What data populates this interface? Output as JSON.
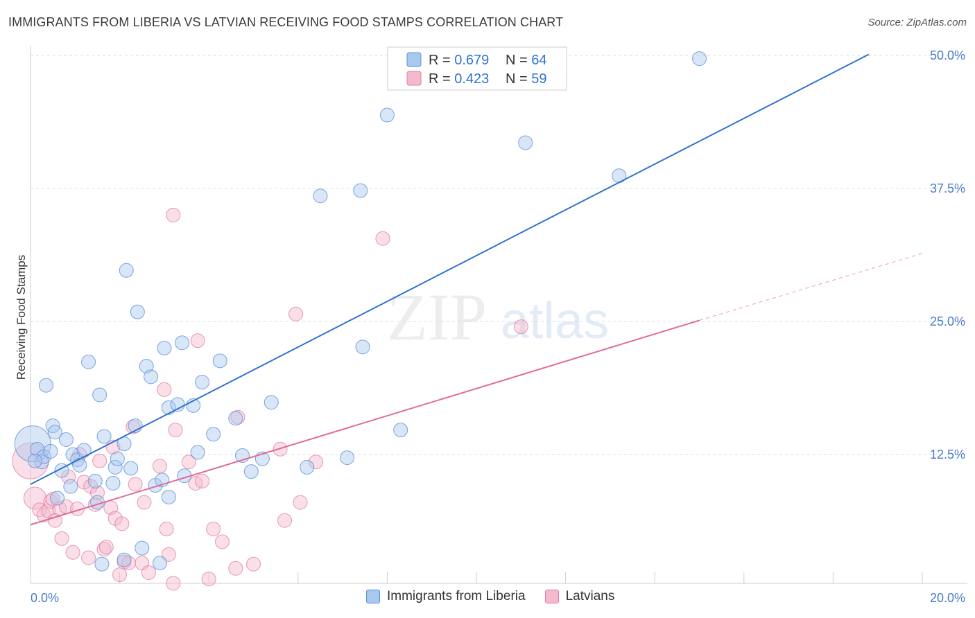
{
  "header": {
    "title": "IMMIGRANTS FROM LIBERIA VS LATVIAN RECEIVING FOOD STAMPS CORRELATION CHART",
    "source": "Source: ZipAtlas.com"
  },
  "watermark": {
    "zip": "ZIP",
    "atlas": "atlas"
  },
  "colors": {
    "blue_fill": "#a9c8f0",
    "blue_stroke": "#5b8fd8",
    "blue_line": "#2f73d0",
    "pink_fill": "#f5b8cc",
    "pink_stroke": "#e07fa0",
    "pink_line": "#e06a96",
    "tick_text": "#4a7bc8",
    "grid": "#dddddd"
  },
  "legend": {
    "rows": [
      {
        "r_label": "R = ",
        "r_value": "0.679",
        "n_label": "N = ",
        "n_value": "64"
      },
      {
        "r_label": "R = ",
        "r_value": "0.423",
        "n_label": "N = ",
        "n_value": "59"
      }
    ]
  },
  "bottom_legend": {
    "series1": "Immigrants from Liberia",
    "series2": "Latvians"
  },
  "chart_data": {
    "type": "scatter",
    "title": "IMMIGRANTS FROM LIBERIA VS LATVIAN RECEIVING FOOD STAMPS CORRELATION CHART",
    "xlabel": "",
    "ylabel": "Receiving Food Stamps",
    "xlim": [
      0,
      20
    ],
    "ylim": [
      0,
      50.5
    ],
    "x_tick_labels": [
      "0.0%",
      "20.0%"
    ],
    "y_ticks": [
      12.5,
      25.0,
      37.5,
      50.0
    ],
    "y_tick_labels": [
      "12.5%",
      "25.0%",
      "37.5%",
      "50.0%"
    ],
    "grid": true,
    "legend_position": "top-center",
    "series": [
      {
        "name": "Immigrants from Liberia",
        "R": 0.679,
        "N": 64,
        "trend": {
          "x0": 0.0,
          "y0": 9.7,
          "x1": 18.8,
          "y1": 50.1
        },
        "points": [
          [
            0.05,
            13.5
          ],
          [
            0.15,
            13.0
          ],
          [
            0.25,
            11.8
          ],
          [
            0.3,
            12.3
          ],
          [
            0.35,
            19.0
          ],
          [
            0.45,
            12.8
          ],
          [
            0.5,
            15.2
          ],
          [
            0.55,
            14.6
          ],
          [
            0.7,
            11.0
          ],
          [
            0.8,
            13.9
          ],
          [
            0.9,
            9.5
          ],
          [
            0.95,
            12.5
          ],
          [
            1.05,
            12.0
          ],
          [
            1.1,
            11.5
          ],
          [
            1.2,
            12.9
          ],
          [
            1.3,
            21.2
          ],
          [
            1.45,
            10.0
          ],
          [
            1.5,
            8.0
          ],
          [
            1.55,
            18.1
          ],
          [
            1.65,
            14.2
          ],
          [
            1.85,
            9.8
          ],
          [
            1.9,
            11.3
          ],
          [
            1.95,
            12.1
          ],
          [
            2.1,
            13.5
          ],
          [
            2.15,
            29.8
          ],
          [
            2.25,
            11.2
          ],
          [
            2.35,
            15.2
          ],
          [
            2.4,
            25.9
          ],
          [
            2.5,
            3.7
          ],
          [
            2.6,
            20.8
          ],
          [
            2.7,
            19.8
          ],
          [
            2.8,
            9.6
          ],
          [
            2.9,
            2.3
          ],
          [
            2.95,
            10.1
          ],
          [
            3.0,
            22.5
          ],
          [
            3.1,
            8.5
          ],
          [
            3.1,
            16.9
          ],
          [
            3.3,
            17.2
          ],
          [
            3.4,
            23.0
          ],
          [
            3.45,
            10.5
          ],
          [
            3.65,
            17.1
          ],
          [
            3.75,
            12.7
          ],
          [
            3.85,
            19.3
          ],
          [
            4.1,
            14.4
          ],
          [
            4.25,
            21.3
          ],
          [
            4.6,
            15.9
          ],
          [
            4.75,
            12.4
          ],
          [
            4.95,
            10.9
          ],
          [
            5.2,
            12.1
          ],
          [
            5.4,
            17.4
          ],
          [
            6.2,
            11.3
          ],
          [
            6.5,
            36.8
          ],
          [
            7.1,
            12.2
          ],
          [
            7.4,
            37.3
          ],
          [
            7.45,
            22.6
          ],
          [
            8.0,
            44.4
          ],
          [
            8.3,
            14.8
          ],
          [
            11.1,
            41.8
          ],
          [
            13.2,
            38.7
          ],
          [
            15.0,
            49.7
          ],
          [
            2.1,
            2.6
          ],
          [
            1.6,
            2.2
          ],
          [
            0.1,
            11.9
          ],
          [
            0.6,
            8.4
          ]
        ],
        "point_sizes": [
          26,
          10,
          10,
          10,
          10,
          10,
          10,
          10,
          10,
          10,
          10,
          10,
          10,
          10,
          10,
          10,
          10,
          10,
          10,
          10,
          10,
          10,
          10,
          10,
          10,
          10,
          10,
          10,
          10,
          10,
          10,
          10,
          10,
          10,
          10,
          10,
          10,
          10,
          10,
          10,
          10,
          10,
          10,
          10,
          10,
          10,
          10,
          10,
          10,
          10,
          10,
          10,
          10,
          10,
          10,
          10,
          10,
          10,
          10,
          10,
          10,
          10,
          10,
          10
        ]
      },
      {
        "name": "Latvians",
        "R": 0.423,
        "N": 59,
        "trend": {
          "x0": 0.0,
          "y0": 5.9,
          "x1": 15.0,
          "y1": 25.1,
          "dash_x1": 20.0,
          "dash_y1": 31.4
        },
        "points": [
          [
            0.0,
            11.9
          ],
          [
            0.1,
            8.4
          ],
          [
            0.2,
            7.3
          ],
          [
            0.3,
            6.8
          ],
          [
            0.4,
            7.2
          ],
          [
            0.45,
            8.1
          ],
          [
            0.5,
            8.3
          ],
          [
            0.55,
            6.3
          ],
          [
            0.65,
            7.4
          ],
          [
            0.7,
            4.6
          ],
          [
            0.8,
            7.6
          ],
          [
            0.85,
            10.4
          ],
          [
            0.95,
            3.3
          ],
          [
            1.05,
            7.4
          ],
          [
            1.1,
            12.5
          ],
          [
            1.2,
            9.9
          ],
          [
            1.3,
            2.8
          ],
          [
            1.35,
            9.5
          ],
          [
            1.45,
            7.8
          ],
          [
            1.5,
            8.9
          ],
          [
            1.55,
            11.9
          ],
          [
            1.65,
            3.6
          ],
          [
            1.7,
            3.8
          ],
          [
            1.8,
            7.5
          ],
          [
            1.85,
            13.2
          ],
          [
            1.9,
            6.5
          ],
          [
            2.0,
            1.2
          ],
          [
            2.05,
            6.0
          ],
          [
            2.1,
            2.4
          ],
          [
            2.2,
            2.3
          ],
          [
            2.3,
            15.1
          ],
          [
            2.35,
            9.7
          ],
          [
            2.5,
            2.3
          ],
          [
            2.55,
            8.0
          ],
          [
            2.65,
            1.4
          ],
          [
            2.9,
            11.4
          ],
          [
            3.0,
            18.6
          ],
          [
            3.05,
            5.5
          ],
          [
            3.1,
            3.1
          ],
          [
            3.2,
            0.4
          ],
          [
            3.25,
            14.8
          ],
          [
            3.55,
            11.8
          ],
          [
            3.7,
            9.8
          ],
          [
            3.75,
            23.2
          ],
          [
            3.85,
            10.0
          ],
          [
            4.0,
            0.8
          ],
          [
            4.1,
            5.5
          ],
          [
            4.3,
            4.3
          ],
          [
            4.6,
            1.8
          ],
          [
            4.65,
            16.0
          ],
          [
            5.0,
            2.2
          ],
          [
            5.6,
            13.0
          ],
          [
            5.7,
            6.3
          ],
          [
            5.95,
            25.7
          ],
          [
            6.05,
            8.0
          ],
          [
            6.4,
            11.8
          ],
          [
            7.9,
            32.8
          ],
          [
            11.0,
            24.5
          ],
          [
            3.2,
            35.0
          ]
        ],
        "point_sizes": [
          26,
          16,
          10,
          10,
          10,
          10,
          10,
          10,
          10,
          10,
          10,
          10,
          10,
          10,
          10,
          10,
          10,
          10,
          10,
          10,
          10,
          10,
          10,
          10,
          10,
          10,
          10,
          10,
          10,
          10,
          10,
          10,
          10,
          10,
          10,
          10,
          10,
          10,
          10,
          10,
          10,
          10,
          10,
          10,
          10,
          10,
          10,
          10,
          10,
          10,
          10,
          10,
          10,
          10,
          10,
          10,
          10,
          10,
          10
        ]
      }
    ]
  }
}
